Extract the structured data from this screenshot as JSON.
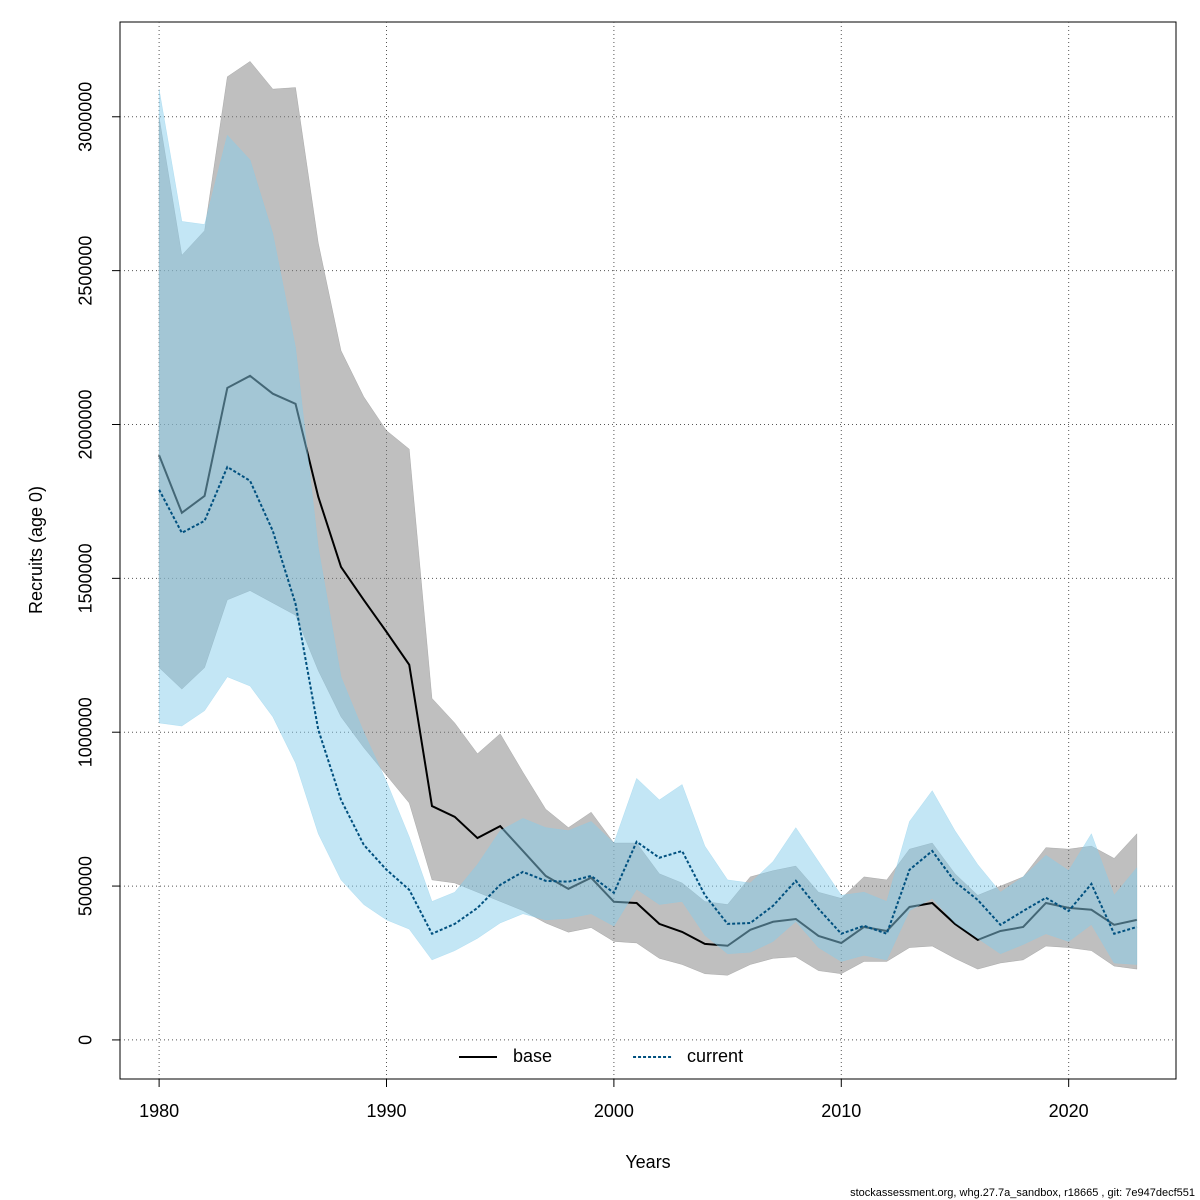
{
  "chart_data": {
    "type": "line",
    "x_label": "Years",
    "y_label": "Recruits (age 0)",
    "footer": "stockassessment.org, whg.27.7a_sandbox, r18665 , git: 7e947decf551",
    "x": [
      1980,
      1981,
      1982,
      1983,
      1984,
      1985,
      1986,
      1987,
      1988,
      1989,
      1990,
      1991,
      1992,
      1993,
      1994,
      1995,
      1996,
      1997,
      1998,
      1999,
      2000,
      2001,
      2002,
      2003,
      2004,
      2005,
      2006,
      2007,
      2008,
      2009,
      2010,
      2011,
      2012,
      2013,
      2014,
      2015,
      2016,
      2017,
      2018,
      2019,
      2020,
      2021,
      2022,
      2023
    ],
    "series": [
      {
        "name": "base",
        "color": "#000000",
        "line_style": "solid",
        "band_color": "rgba(127,127,127,0.5)",
        "values": [
          1900000,
          1713000,
          1768000,
          2119000,
          2158000,
          2100000,
          2067000,
          1765000,
          1537000,
          1430000,
          1326000,
          1219000,
          760000,
          725000,
          656000,
          695000,
          614000,
          533000,
          491000,
          527000,
          449000,
          445000,
          377000,
          351000,
          312000,
          306000,
          358000,
          384000,
          393000,
          338000,
          315000,
          367000,
          354000,
          432000,
          445000,
          377000,
          325000,
          354000,
          367000,
          445000,
          429000,
          423000,
          374000,
          390000
        ],
        "lower": [
          1210000,
          1140000,
          1210000,
          1430000,
          1460000,
          1420000,
          1380000,
          1200000,
          1050000,
          950000,
          860000,
          770000,
          520000,
          510000,
          480000,
          450000,
          420000,
          380000,
          350000,
          365000,
          320000,
          315000,
          265000,
          245000,
          215000,
          210000,
          245000,
          265000,
          270000,
          225000,
          215000,
          255000,
          255000,
          300000,
          305000,
          265000,
          230000,
          250000,
          260000,
          305000,
          300000,
          290000,
          240000,
          230000
        ],
        "upper": [
          3000000,
          2550000,
          2630000,
          3130000,
          3180000,
          3090000,
          3095000,
          2590000,
          2240000,
          2090000,
          1980000,
          1920000,
          1110000,
          1030000,
          930000,
          995000,
          870000,
          750000,
          690000,
          740000,
          640000,
          640000,
          540000,
          510000,
          450000,
          440000,
          530000,
          550000,
          565000,
          480000,
          460000,
          530000,
          520000,
          620000,
          640000,
          540000,
          470000,
          500000,
          530000,
          625000,
          620000,
          630000,
          590000,
          670000
        ]
      },
      {
        "name": "current",
        "color": "#00507f",
        "line_style": "dotted",
        "band_color": "rgba(135,206,235,0.5)",
        "values": [
          1788000,
          1648000,
          1687000,
          1862000,
          1817000,
          1654000,
          1417000,
          1008000,
          780000,
          634000,
          553000,
          488000,
          345000,
          377000,
          429000,
          504000,
          546000,
          517000,
          514000,
          533000,
          478000,
          644000,
          592000,
          614000,
          471000,
          377000,
          380000,
          436000,
          517000,
          426000,
          345000,
          371000,
          345000,
          553000,
          614000,
          514000,
          455000,
          374000,
          419000,
          462000,
          419000,
          507000,
          345000,
          367000
        ],
        "lower": [
          1030000,
          1020000,
          1070000,
          1180000,
          1150000,
          1050000,
          900000,
          670000,
          520000,
          440000,
          390000,
          360000,
          260000,
          290000,
          330000,
          380000,
          410000,
          390000,
          395000,
          410000,
          370000,
          490000,
          440000,
          450000,
          340000,
          280000,
          285000,
          320000,
          385000,
          300000,
          255000,
          275000,
          260000,
          420000,
          460000,
          380000,
          330000,
          280000,
          310000,
          345000,
          320000,
          375000,
          250000,
          245000
        ],
        "upper": [
          3090000,
          2660000,
          2650000,
          2940000,
          2860000,
          2620000,
          2250000,
          1600000,
          1180000,
          1000000,
          840000,
          660000,
          450000,
          480000,
          570000,
          680000,
          720000,
          690000,
          680000,
          710000,
          640000,
          850000,
          780000,
          830000,
          630000,
          520000,
          510000,
          580000,
          690000,
          580000,
          470000,
          480000,
          450000,
          710000,
          810000,
          680000,
          570000,
          480000,
          530000,
          600000,
          550000,
          670000,
          470000,
          560000
        ]
      }
    ],
    "xlim": [
      1978.28,
      2024.72
    ],
    "ylim": [
      -127000,
      3308000
    ],
    "xticks": [
      1980,
      1990,
      2000,
      2010,
      2020
    ],
    "yticks": [
      0,
      500000,
      1000000,
      1500000,
      2000000,
      2500000,
      3000000
    ],
    "grid": true,
    "legend": "bottom"
  }
}
